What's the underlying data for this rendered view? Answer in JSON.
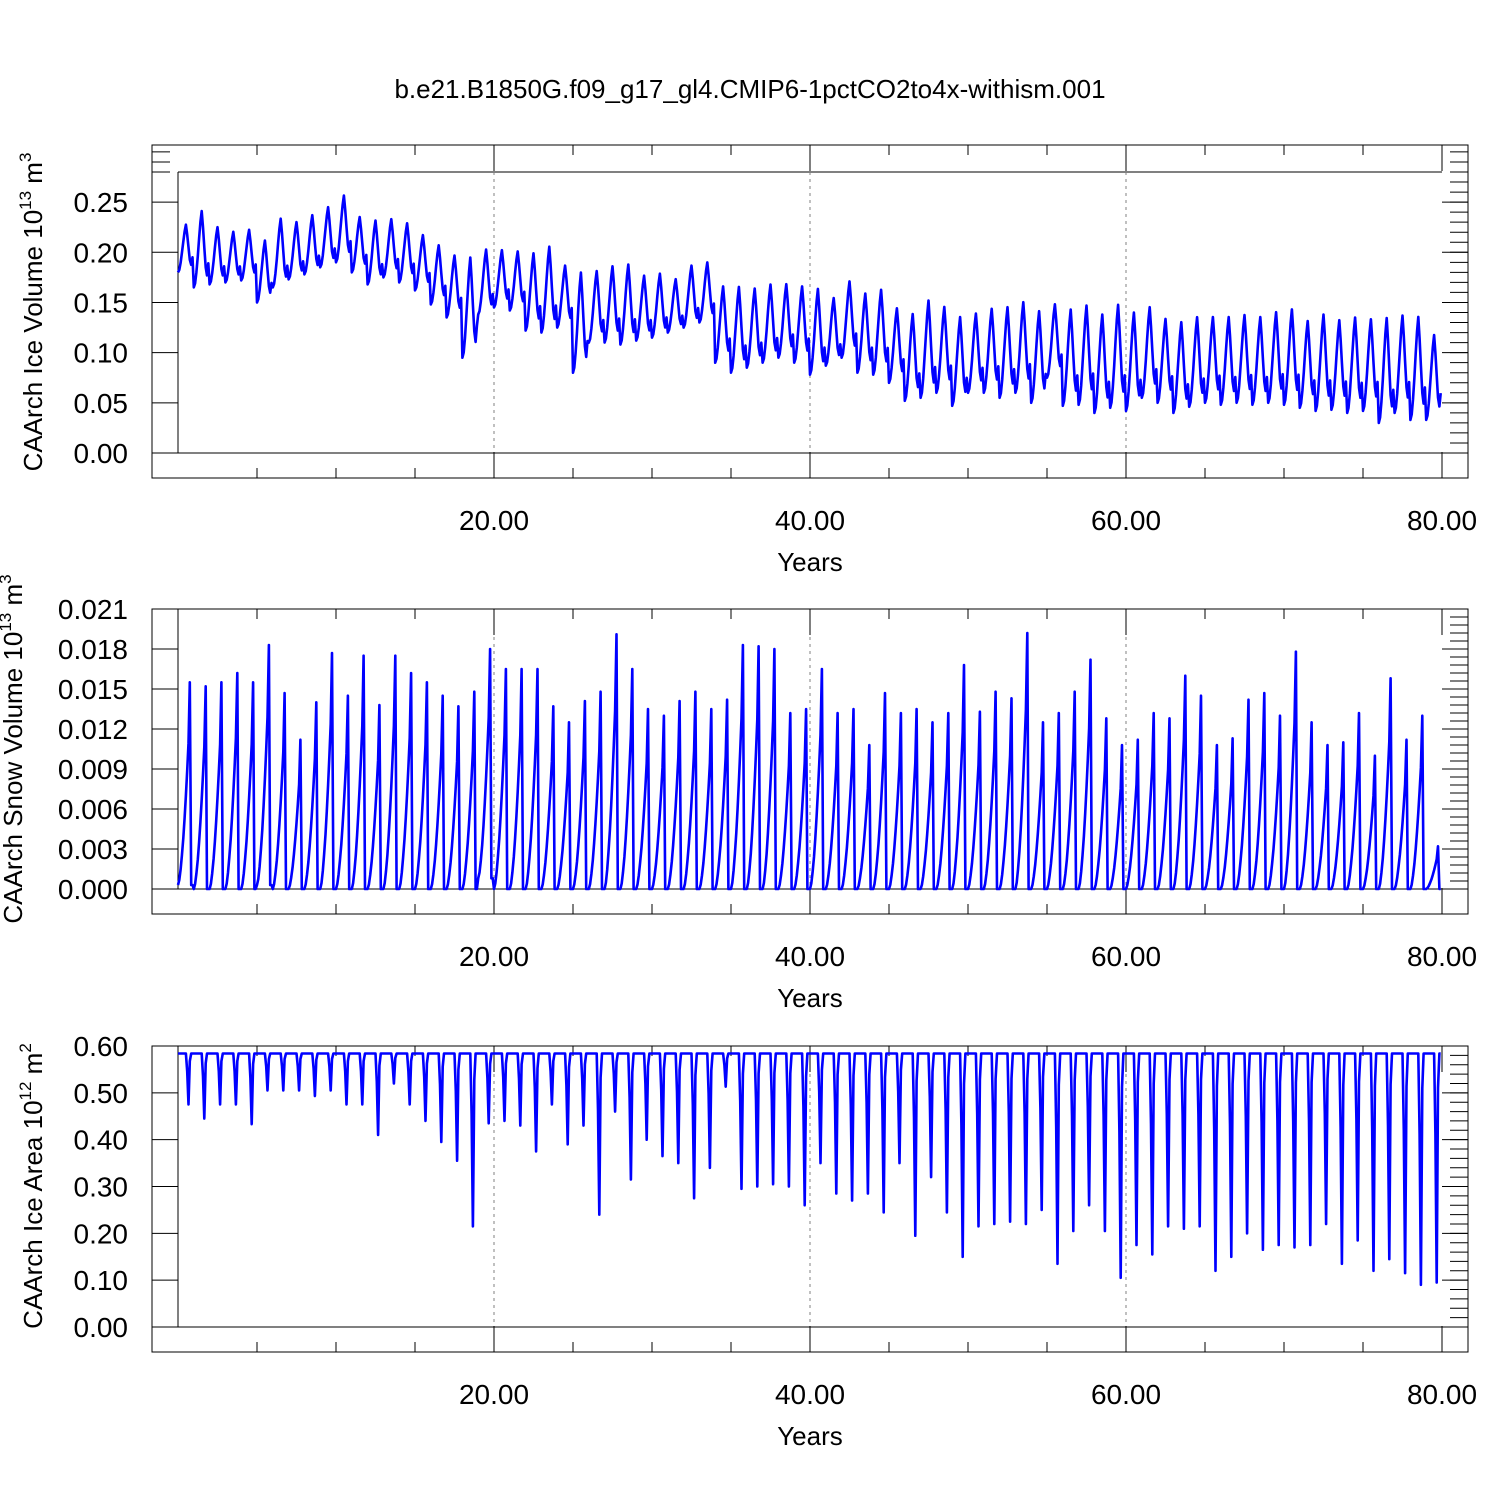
{
  "figure": {
    "title": "b.e21.B1850G.f09_g17_gl4.CMIP6-1pctCO2to4x-withism.001",
    "line_color": "#0000ff",
    "reference_line_color": "#808080"
  },
  "chart_data": [
    {
      "type": "line",
      "ylabel": "CAArch Ice Volume 10^13 m^3",
      "ylabel_parts": [
        "CAArch Ice Volume 10",
        "13",
        " m",
        "3"
      ],
      "xlabel": "Years",
      "xlim": [
        0,
        81.5
      ],
      "ylim": [
        0,
        0.28
      ],
      "xticks": [
        20,
        40,
        60,
        80
      ],
      "xtick_labels": [
        "20.00",
        "40.00",
        "60.00",
        "80.00"
      ],
      "xgrid_lines": [
        20,
        40,
        60
      ],
      "yticks": [
        0,
        0.05,
        0.1,
        0.15,
        0.2,
        0.25
      ],
      "ytick_labels": [
        "0.00",
        "0.05",
        "0.10",
        "0.15",
        "0.20",
        "0.25"
      ],
      "series": [
        {
          "x_start": 0,
          "x_step": 1,
          "annual_max": [
            0.23,
            0.245,
            0.228,
            0.223,
            0.225,
            0.215,
            0.237,
            0.233,
            0.24,
            0.248,
            0.26,
            0.238,
            0.235,
            0.236,
            0.232,
            0.22,
            0.21,
            0.2,
            0.2,
            0.206,
            0.205,
            0.204,
            0.203,
            0.21,
            0.19,
            0.185,
            0.185,
            0.19,
            0.192,
            0.18,
            0.182,
            0.176,
            0.19,
            0.193,
            0.17,
            0.17,
            0.168,
            0.172,
            0.172,
            0.17,
            0.168,
            0.158,
            0.175,
            0.163,
            0.167,
            0.148,
            0.143,
            0.157,
            0.15,
            0.14,
            0.143,
            0.148,
            0.15,
            0.155,
            0.146,
            0.152,
            0.148,
            0.152,
            0.143,
            0.153,
            0.145,
            0.15,
            0.138,
            0.135,
            0.14,
            0.14,
            0.14,
            0.142,
            0.14,
            0.145,
            0.148,
            0.136,
            0.143,
            0.137,
            0.14,
            0.138,
            0.14,
            0.142,
            0.141,
            0.122
          ],
          "annual_min": [
            0.18,
            0.165,
            0.168,
            0.17,
            0.172,
            0.15,
            0.165,
            0.173,
            0.178,
            0.185,
            0.19,
            0.18,
            0.168,
            0.175,
            0.17,
            0.162,
            0.148,
            0.135,
            0.095,
            0.138,
            0.145,
            0.142,
            0.122,
            0.12,
            0.125,
            0.08,
            0.11,
            0.11,
            0.108,
            0.112,
            0.115,
            0.12,
            0.125,
            0.13,
            0.09,
            0.08,
            0.085,
            0.09,
            0.095,
            0.09,
            0.078,
            0.087,
            0.095,
            0.08,
            0.078,
            0.07,
            0.052,
            0.055,
            0.06,
            0.047,
            0.06,
            0.06,
            0.055,
            0.06,
            0.05,
            0.075,
            0.047,
            0.048,
            0.04,
            0.045,
            0.042,
            0.055,
            0.05,
            0.04,
            0.046,
            0.05,
            0.048,
            0.05,
            0.048,
            0.05,
            0.048,
            0.045,
            0.042,
            0.043,
            0.04,
            0.042,
            0.03,
            0.04,
            0.033,
            0.033
          ]
        }
      ]
    },
    {
      "type": "line",
      "ylabel": "CAArch Snow Volume 10^13 m^3",
      "ylabel_parts": [
        "CAArch Snow Volume 10",
        "13",
        " m",
        "3"
      ],
      "xlabel": "Years",
      "xlim": [
        0,
        81.5
      ],
      "ylim": [
        0,
        0.021
      ],
      "xticks": [
        20,
        40,
        60,
        80
      ],
      "xtick_labels": [
        "20.00",
        "40.00",
        "60.00",
        "80.00"
      ],
      "xgrid_lines": [
        20,
        40,
        60
      ],
      "yticks": [
        0,
        0.003,
        0.006,
        0.009,
        0.012,
        0.015,
        0.018,
        0.021
      ],
      "ytick_labels": [
        "0.000",
        "0.003",
        "0.006",
        "0.009",
        "0.012",
        "0.015",
        "0.018",
        "0.021"
      ],
      "series": [
        {
          "x_start": 0,
          "x_step": 1,
          "annual_max": [
            0.0155,
            0.0152,
            0.0155,
            0.0162,
            0.0155,
            0.0183,
            0.0147,
            0.0112,
            0.014,
            0.0177,
            0.0145,
            0.0175,
            0.0138,
            0.0175,
            0.0162,
            0.0155,
            0.0145,
            0.0137,
            0.0148,
            0.018,
            0.0165,
            0.0165,
            0.0165,
            0.0137,
            0.0125,
            0.0141,
            0.0148,
            0.0191,
            0.0165,
            0.0135,
            0.013,
            0.0141,
            0.0148,
            0.0135,
            0.0142,
            0.0183,
            0.0182,
            0.018,
            0.0132,
            0.0135,
            0.0165,
            0.0132,
            0.0135,
            0.0108,
            0.0147,
            0.0132,
            0.0135,
            0.0125,
            0.0132,
            0.0168,
            0.0133,
            0.0148,
            0.0143,
            0.0192,
            0.0125,
            0.0132,
            0.0148,
            0.0172,
            0.0128,
            0.0108,
            0.0112,
            0.0132,
            0.0128,
            0.016,
            0.0145,
            0.0108,
            0.0113,
            0.0142,
            0.0147,
            0.013,
            0.0178,
            0.0125,
            0.0108,
            0.011,
            0.0132,
            0.01,
            0.0158,
            0.0112,
            0.013,
            0.0032
          ],
          "annual_min": [
            0.0003,
            0.0,
            0.0,
            0.0,
            0.0,
            0.0003,
            0.0,
            0.0,
            0.0,
            0.0,
            0.0,
            0.0,
            0.0,
            0.0,
            0.0,
            0.0,
            0.0,
            0.0,
            0.0,
            0.0008,
            0.0,
            0.0,
            0.0,
            0.0,
            0.0,
            0.0,
            0.0,
            0.0,
            0.0,
            0.0,
            0.0,
            0.0,
            0.0,
            0.0,
            0.0,
            0.0,
            0.0,
            0.0,
            0.0,
            0.0,
            0.0,
            0.0,
            0.0,
            0.0,
            0.0,
            0.0,
            0.0,
            0.0,
            0.0,
            0.0,
            0.0,
            0.0,
            0.0,
            0.0,
            0.0,
            0.0,
            0.0,
            0.0,
            0.0,
            0.0,
            0.0,
            0.0,
            0.0,
            0.0,
            0.0,
            0.0,
            0.0,
            0.0,
            0.0,
            0.0,
            0.0,
            0.0,
            0.0,
            0.0,
            0.0,
            0.0,
            0.0,
            0.0,
            0.0,
            0.0
          ]
        }
      ]
    },
    {
      "type": "line",
      "ylabel": "CAArch Ice Area 10^12 m^2",
      "ylabel_parts": [
        "CAArch Ice Area 10",
        "12",
        " m",
        "2"
      ],
      "xlabel": "Years",
      "xlim": [
        0,
        81.5
      ],
      "ylim": [
        0,
        0.6
      ],
      "xticks": [
        20,
        40,
        60,
        80
      ],
      "xtick_labels": [
        "20.00",
        "40.00",
        "60.00",
        "80.00"
      ],
      "xgrid_lines": [
        20,
        40,
        60
      ],
      "yticks": [
        0,
        0.1,
        0.2,
        0.3,
        0.4,
        0.5,
        0.6
      ],
      "ytick_labels": [
        "0.00",
        "0.10",
        "0.20",
        "0.30",
        "0.40",
        "0.50",
        "0.60"
      ],
      "series": [
        {
          "x_start": 0,
          "x_step": 1,
          "annual_max": [
            0.584,
            0.584,
            0.584,
            0.584,
            0.584,
            0.584,
            0.584,
            0.584,
            0.584,
            0.584,
            0.584,
            0.584,
            0.584,
            0.584,
            0.584,
            0.584,
            0.584,
            0.584,
            0.584,
            0.584,
            0.584,
            0.584,
            0.584,
            0.584,
            0.584,
            0.584,
            0.584,
            0.584,
            0.584,
            0.584,
            0.584,
            0.584,
            0.584,
            0.584,
            0.584,
            0.584,
            0.584,
            0.584,
            0.584,
            0.584,
            0.584,
            0.584,
            0.584,
            0.584,
            0.584,
            0.584,
            0.584,
            0.584,
            0.584,
            0.584,
            0.584,
            0.584,
            0.584,
            0.584,
            0.584,
            0.584,
            0.584,
            0.584,
            0.584,
            0.584,
            0.584,
            0.584,
            0.584,
            0.584,
            0.584,
            0.584,
            0.584,
            0.584,
            0.584,
            0.584,
            0.584,
            0.584,
            0.584,
            0.584,
            0.584,
            0.584,
            0.584,
            0.584,
            0.584,
            0.584
          ],
          "annual_min": [
            0.475,
            0.445,
            0.475,
            0.475,
            0.433,
            0.505,
            0.505,
            0.505,
            0.493,
            0.505,
            0.475,
            0.475,
            0.41,
            0.52,
            0.475,
            0.44,
            0.395,
            0.355,
            0.215,
            0.435,
            0.44,
            0.43,
            0.375,
            0.475,
            0.39,
            0.43,
            0.24,
            0.46,
            0.315,
            0.4,
            0.365,
            0.35,
            0.275,
            0.34,
            0.513,
            0.295,
            0.3,
            0.305,
            0.3,
            0.26,
            0.35,
            0.285,
            0.27,
            0.285,
            0.245,
            0.35,
            0.195,
            0.32,
            0.245,
            0.15,
            0.215,
            0.22,
            0.225,
            0.22,
            0.25,
            0.135,
            0.205,
            0.26,
            0.205,
            0.105,
            0.175,
            0.155,
            0.215,
            0.21,
            0.215,
            0.12,
            0.15,
            0.2,
            0.165,
            0.175,
            0.17,
            0.175,
            0.22,
            0.135,
            0.185,
            0.12,
            0.145,
            0.115,
            0.09,
            0.095
          ]
        }
      ]
    }
  ]
}
